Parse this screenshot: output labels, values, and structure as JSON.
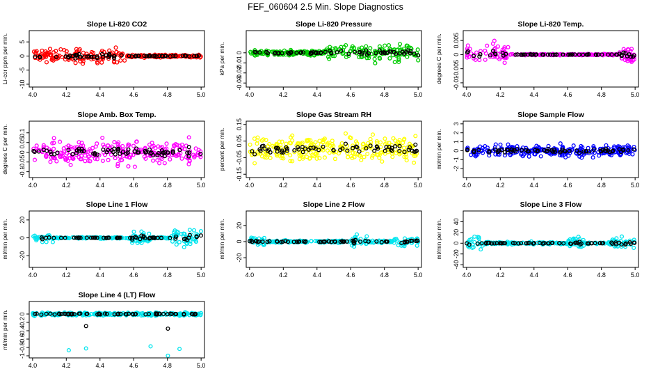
{
  "figure": {
    "title": "FEF_060604  2.5 Min. Slope Diagnostics",
    "ncols": 3
  },
  "chart_data": [
    {
      "type": "scatter",
      "title": "Slope Li-820 CO2",
      "ylabel": "Li-cor ppm per min.",
      "color": "#ff0000",
      "xlim": [
        3.98,
        5.02
      ],
      "ylim": [
        -11,
        9
      ],
      "xticks": [
        4.0,
        4.2,
        4.4,
        4.6,
        4.8,
        5.0
      ],
      "yticks": [
        -10,
        -5,
        0,
        5
      ],
      "profile": "co2",
      "noise": 2.0,
      "series": [
        {
          "name": "",
          "x": [],
          "y": []
        }
      ]
    },
    {
      "type": "scatter",
      "title": "Slope Li-820 Pressure",
      "ylabel": "kPa per min.",
      "color": "#00cc00",
      "xlim": [
        3.98,
        5.02
      ],
      "ylim": [
        -0.034,
        0.022
      ],
      "xticks": [
        4.0,
        4.2,
        4.4,
        4.6,
        4.8,
        5.0
      ],
      "yticks": [
        -0.03,
        -0.02,
        -0.01,
        0.0
      ],
      "profile": "pressure",
      "noise": 0.006,
      "series": [
        {
          "name": "",
          "x": [],
          "y": []
        }
      ]
    },
    {
      "type": "scatter",
      "title": "Slope Li-820 Temp.",
      "ylabel": "degrees C per min.",
      "color": "#ff00ff",
      "xlim": [
        3.98,
        5.02
      ],
      "ylim": [
        -0.0115,
        0.0085
      ],
      "xticks": [
        4.0,
        4.2,
        4.4,
        4.6,
        4.8,
        5.0
      ],
      "yticks": [
        -0.01,
        -0.005,
        0.0,
        0.005
      ],
      "profile": "temp",
      "noise": 0.003,
      "series": [
        {
          "name": "",
          "x": [],
          "y": []
        }
      ]
    },
    {
      "type": "scatter",
      "title": "Slope Amb. Box Temp.",
      "ylabel": "degrees C per min.",
      "color": "#ff00ff",
      "xlim": [
        3.98,
        5.02
      ],
      "ylim": [
        -0.13,
        0.16
      ],
      "xticks": [
        4.0,
        4.2,
        4.4,
        4.6,
        4.8,
        5.0
      ],
      "yticks": [
        -0.1,
        -0.05,
        0.0,
        0.05,
        0.1
      ],
      "profile": "uniform",
      "noise": 0.05,
      "series": [
        {
          "name": "",
          "x": [],
          "y": []
        }
      ]
    },
    {
      "type": "scatter",
      "title": "Slope Gas Stream RH",
      "ylabel": "percent per min.",
      "color": "#ffff00",
      "xlim": [
        3.98,
        5.02
      ],
      "ylim": [
        -0.17,
        0.17
      ],
      "xticks": [
        4.0,
        4.2,
        4.4,
        4.6,
        4.8,
        5.0
      ],
      "yticks": [
        -0.15,
        -0.05,
        0.05,
        0.15
      ],
      "profile": "uniform",
      "noise": 0.06,
      "series": [
        {
          "name": "",
          "x": [],
          "y": []
        }
      ]
    },
    {
      "type": "scatter",
      "title": "Slope Sample Flow",
      "ylabel": "ml/min per min.",
      "color": "#0000ff",
      "xlim": [
        3.98,
        5.02
      ],
      "ylim": [
        -3.0,
        3.3
      ],
      "xticks": [
        4.0,
        4.2,
        4.4,
        4.6,
        4.8,
        5.0
      ],
      "yticks": [
        -2,
        -1,
        0,
        1,
        2,
        3
      ],
      "profile": "uniform",
      "noise": 0.5,
      "series": [
        {
          "name": "",
          "x": [],
          "y": []
        }
      ]
    },
    {
      "type": "scatter",
      "title": "Slope Line 1 Flow",
      "ylabel": "ml/min per min.",
      "color": "#00e5ee",
      "xlim": [
        3.98,
        5.02
      ],
      "ylim": [
        -33,
        30
      ],
      "xticks": [
        4.0,
        4.2,
        4.4,
        4.6,
        4.8,
        5.0
      ],
      "yticks": [
        -20,
        0,
        20
      ],
      "profile": "line1",
      "noise": 4,
      "series": [
        {
          "name": "",
          "x": [],
          "y": []
        }
      ]
    },
    {
      "type": "scatter",
      "title": "Slope Line 2 Flow",
      "ylabel": "ml/min per min.",
      "color": "#00e5ee",
      "xlim": [
        3.98,
        5.02
      ],
      "ylim": [
        -32,
        38
      ],
      "xticks": [
        4.0,
        4.2,
        4.4,
        4.6,
        4.8,
        5.0
      ],
      "yticks": [
        -20,
        0,
        20
      ],
      "profile": "lineN",
      "noise": 4,
      "series": [
        {
          "name": "",
          "x": [],
          "y": []
        }
      ]
    },
    {
      "type": "scatter",
      "title": "Slope Line 3 Flow",
      "ylabel": "ml/min per min.",
      "color": "#00e5ee",
      "xlim": [
        3.98,
        5.02
      ],
      "ylim": [
        -45,
        60
      ],
      "xticks": [
        4.0,
        4.2,
        4.4,
        4.6,
        4.8,
        5.0
      ],
      "yticks": [
        -40,
        -20,
        0,
        20,
        40
      ],
      "profile": "lineN",
      "noise": 6,
      "series": [
        {
          "name": "",
          "x": [],
          "y": []
        }
      ]
    },
    {
      "type": "scatter",
      "title": "Slope Line 4 (LT) Flow",
      "ylabel": "ml/min per min.",
      "color": "#00e5ee",
      "xlim": [
        3.98,
        5.02
      ],
      "ylim": [
        -1.05,
        0.3
      ],
      "xticks": [
        4.0,
        4.2,
        4.4,
        4.6,
        4.8,
        5.0
      ],
      "yticks": [
        -1.0,
        -0.8,
        -0.6,
        -0.4,
        -0.2,
        0.0
      ],
      "profile": "line4",
      "noise": 0.05,
      "series": [
        {
          "name": "",
          "x": [],
          "y": []
        }
      ]
    }
  ]
}
